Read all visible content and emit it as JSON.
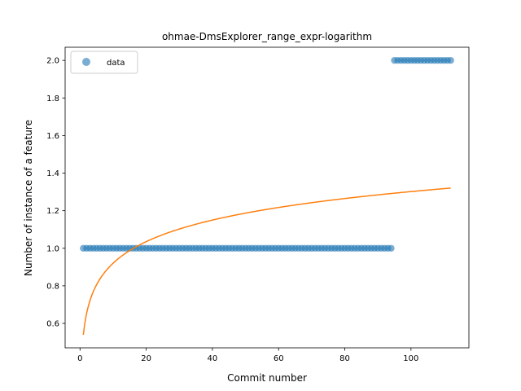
{
  "chart_data": {
    "type": "scatter",
    "title": "ohmae-DmsExplorer_range_expr-logarithm",
    "xlabel": "Commit number",
    "ylabel": "Number of instance of a feature",
    "xlim": [
      -4.5,
      117.5
    ],
    "ylim": [
      0.47,
      2.07
    ],
    "xticks": [
      0,
      20,
      40,
      60,
      80,
      100
    ],
    "yticks": [
      0.6,
      0.8,
      1.0,
      1.2,
      1.4,
      1.6,
      1.8,
      2.0
    ],
    "xtick_labels": [
      "0",
      "20",
      "40",
      "60",
      "80",
      "100"
    ],
    "ytick_labels": [
      "0.6",
      "0.8",
      "1.0",
      "1.2",
      "1.4",
      "1.6",
      "1.8",
      "2.0"
    ],
    "legend": {
      "position": "top-left",
      "entries": [
        "data"
      ]
    },
    "grid": false,
    "series": [
      {
        "name": "data",
        "kind": "scatter",
        "color": "#1f77b4",
        "segments": [
          {
            "x_from": 1,
            "x_to": 94,
            "y": 1.0
          },
          {
            "x_from": 95,
            "x_to": 112,
            "y": 2.0
          }
        ]
      },
      {
        "kind": "line",
        "color": "#ff7f0e",
        "fit": {
          "model": "logarithmic",
          "a": 0.5395,
          "b": 0.1655,
          "x_from": 1,
          "x_to": 112
        }
      }
    ]
  }
}
